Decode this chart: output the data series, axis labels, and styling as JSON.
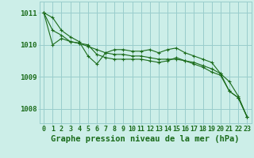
{
  "title": "Graphe pression niveau de la mer (hPa)",
  "bg_color": "#cceee8",
  "grid_color": "#99cccc",
  "line_color": "#1a6b1a",
  "x_ticks": [
    0,
    1,
    2,
    3,
    4,
    5,
    6,
    7,
    8,
    9,
    10,
    11,
    12,
    13,
    14,
    15,
    16,
    17,
    18,
    19,
    20,
    21,
    22,
    23
  ],
  "y_ticks": [
    1008,
    1009,
    1010,
    1011
  ],
  "ylim": [
    1007.55,
    1011.35
  ],
  "xlim": [
    -0.5,
    23.5
  ],
  "series1": [
    1011.0,
    1010.85,
    1010.45,
    1010.25,
    1010.1,
    1009.65,
    1009.4,
    1009.75,
    1009.85,
    1009.85,
    1009.8,
    1009.8,
    1009.85,
    1009.75,
    1009.85,
    1009.9,
    1009.75,
    1009.65,
    1009.55,
    1009.45,
    1009.1,
    1008.55,
    1008.35,
    1007.75
  ],
  "series2": [
    1011.0,
    1010.45,
    1010.3,
    1010.1,
    1010.05,
    1009.95,
    1009.85,
    1009.75,
    1009.7,
    1009.7,
    1009.65,
    1009.65,
    1009.6,
    1009.55,
    1009.55,
    1009.55,
    1009.5,
    1009.45,
    1009.35,
    1009.25,
    1009.1,
    1008.85,
    1008.4,
    1007.75
  ],
  "series3": [
    1011.0,
    1010.0,
    1010.2,
    1010.1,
    1010.05,
    1010.0,
    1009.7,
    1009.6,
    1009.55,
    1009.55,
    1009.55,
    1009.55,
    1009.5,
    1009.45,
    1009.5,
    1009.6,
    1009.5,
    1009.4,
    1009.3,
    1009.15,
    1009.05,
    1008.55,
    1008.35,
    1007.75
  ],
  "title_fontsize": 7.5,
  "tick_fontsize": 6.0
}
